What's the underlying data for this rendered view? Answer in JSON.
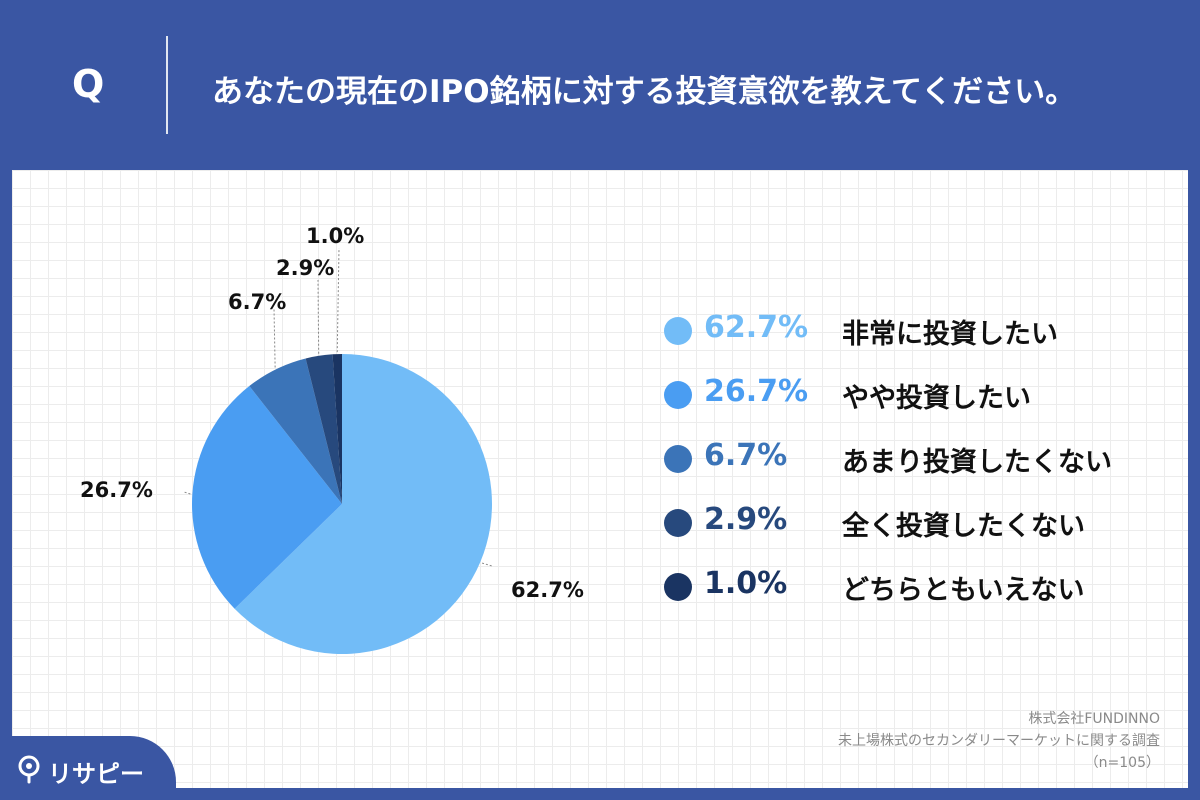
{
  "header": {
    "q_mark": "Q",
    "question": "あなたの現在のIPO銘柄に対する投資意欲を教えてください。"
  },
  "chart_data": {
    "type": "pie",
    "title": "あなたの現在のIPO銘柄に対する投資意欲を教えてください。",
    "start": "12 o'clock, clockwise",
    "slices": [
      {
        "label": "非常に投資したい",
        "value": 62.7,
        "value_label": "62.7%",
        "color": "#72bcf7"
      },
      {
        "label": "やや投資したい",
        "value": 26.7,
        "value_label": "26.7%",
        "color": "#4a9df2"
      },
      {
        "label": "あまり投資したくない",
        "value": 6.7,
        "value_label": "6.7%",
        "color": "#3b74b8"
      },
      {
        "label": "全く投資したくない",
        "value": 2.9,
        "value_label": "2.9%",
        "color": "#27497d"
      },
      {
        "label": "どちらともいえない",
        "value": 1.0,
        "value_label": "1.0%",
        "color": "#1a3462"
      }
    ]
  },
  "source": {
    "company": "株式会社FUNDINNO",
    "survey": "未上場株式のセカンダリーマーケットに関する調査",
    "sample": "（n=105）"
  },
  "brand": {
    "name": "リサピー"
  }
}
